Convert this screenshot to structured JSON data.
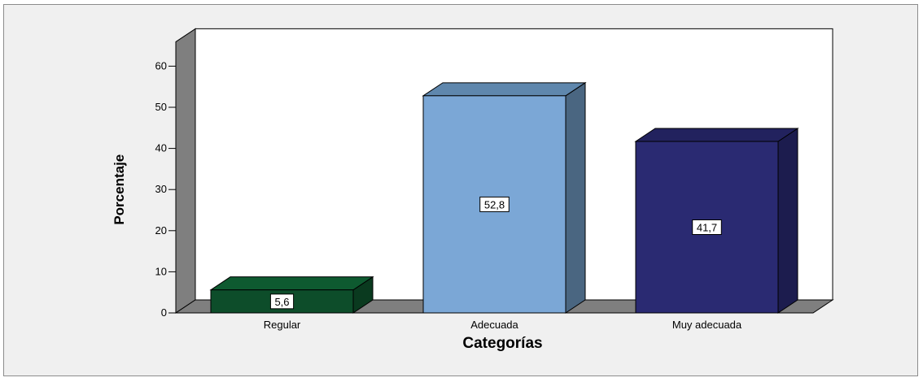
{
  "chart_data": {
    "type": "bar",
    "categories": [
      "Regular",
      "Adecuada",
      "Muy adecuada"
    ],
    "values": [
      5.6,
      52.8,
      41.7
    ],
    "data_labels": [
      "5,6",
      "52,8",
      "41,7"
    ],
    "colors": [
      "#0d4d2a",
      "#7ba7d6",
      "#2a2a72"
    ],
    "side_colors": [
      "#0a3a1f",
      "#4a6681",
      "#1c1c4e"
    ],
    "top_colors": [
      "#0e5a30",
      "#5f87ad",
      "#22225e"
    ],
    "xlabel": "Categorías",
    "ylabel": "Porcentaje",
    "yticks": [
      0,
      10,
      20,
      30,
      40,
      50,
      60
    ],
    "ylim": [
      0,
      60
    ],
    "grid": false,
    "legend": "none",
    "style": "3d-bar"
  }
}
